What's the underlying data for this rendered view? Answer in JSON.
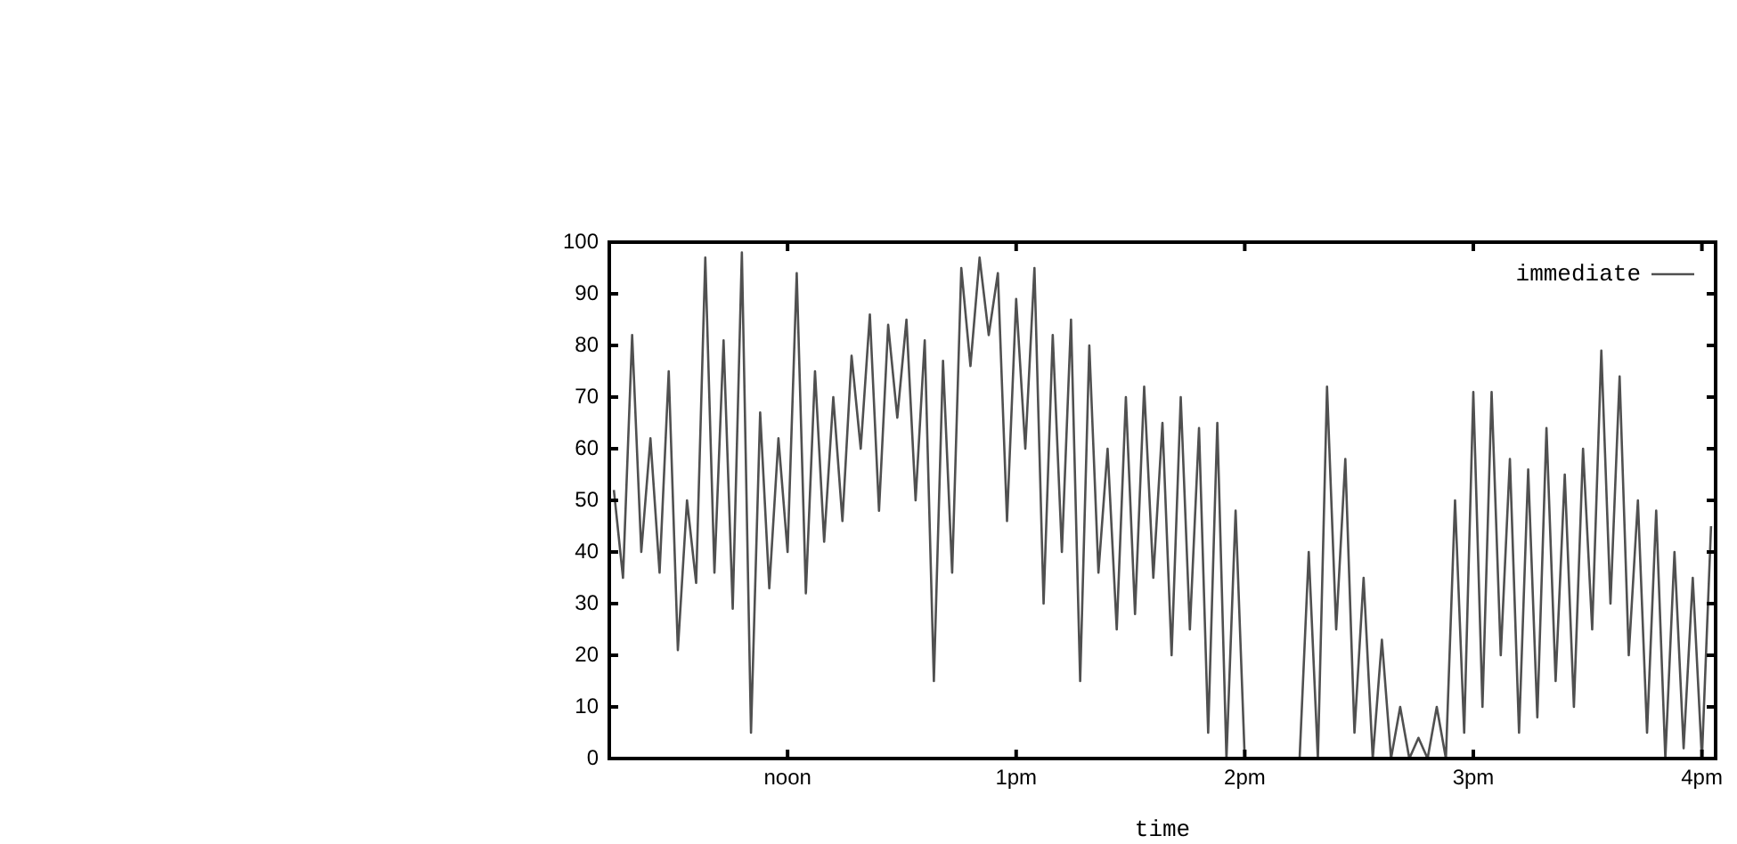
{
  "chart_data": {
    "type": "line",
    "xlabel": "time",
    "legend": "top right",
    "grid": false,
    "categories": [
      null,
      null,
      null,
      null,
      null,
      null,
      null,
      null,
      null,
      null,
      null,
      null,
      null,
      null,
      null,
      null,
      null,
      null,
      null,
      "noon",
      null,
      null,
      null,
      null,
      null,
      null,
      null,
      null,
      null,
      null,
      null,
      null,
      null,
      null,
      null,
      null,
      null,
      null,
      null,
      null,
      null,
      null,
      null,
      null,
      "1pm",
      null,
      null,
      null,
      null,
      null,
      null,
      null,
      null,
      null,
      null,
      null,
      null,
      null,
      null,
      null,
      null,
      null,
      null,
      null,
      null,
      null,
      null,
      null,
      null,
      "2pm",
      null,
      null,
      null,
      null,
      null,
      null,
      null,
      null,
      null,
      null,
      null,
      null,
      null,
      null,
      null,
      null,
      null,
      null,
      null,
      null,
      null,
      null,
      null,
      null,
      "3pm",
      null,
      null,
      null,
      null,
      null,
      null,
      null,
      null,
      null,
      null,
      null,
      null,
      null,
      null,
      null,
      null,
      null,
      null,
      null,
      null,
      null,
      null,
      null,
      null,
      "4pm",
      null
    ],
    "ylim": [
      0,
      100
    ],
    "yticks": [
      0,
      10,
      20,
      30,
      40,
      50,
      60,
      70,
      80,
      90,
      100
    ],
    "series": [
      {
        "name": "immediate",
        "color": "#505050",
        "values": [
          52,
          35,
          82,
          40,
          62,
          36,
          75,
          21,
          50,
          34,
          97,
          36,
          81,
          29,
          98,
          5,
          67,
          33,
          62,
          40,
          94,
          32,
          75,
          42,
          70,
          46,
          78,
          60,
          86,
          48,
          84,
          66,
          85,
          50,
          81,
          15,
          77,
          36,
          95,
          76,
          97,
          82,
          94,
          46,
          89,
          60,
          95,
          30,
          82,
          40,
          85,
          15,
          80,
          36,
          60,
          25,
          70,
          28,
          72,
          35,
          65,
          20,
          70,
          25,
          64,
          5,
          65,
          0,
          48,
          0,
          0,
          0,
          0,
          0,
          0,
          0,
          40,
          0,
          72,
          25,
          58,
          5,
          35,
          0,
          23,
          0,
          10,
          0,
          4,
          0,
          10,
          0,
          50,
          5,
          71,
          10,
          71,
          20,
          58,
          5,
          56,
          8,
          64,
          15,
          55,
          10,
          60,
          25,
          79,
          30,
          74,
          20,
          50,
          5,
          48,
          0,
          40,
          2,
          35,
          0,
          45
        ]
      }
    ]
  }
}
